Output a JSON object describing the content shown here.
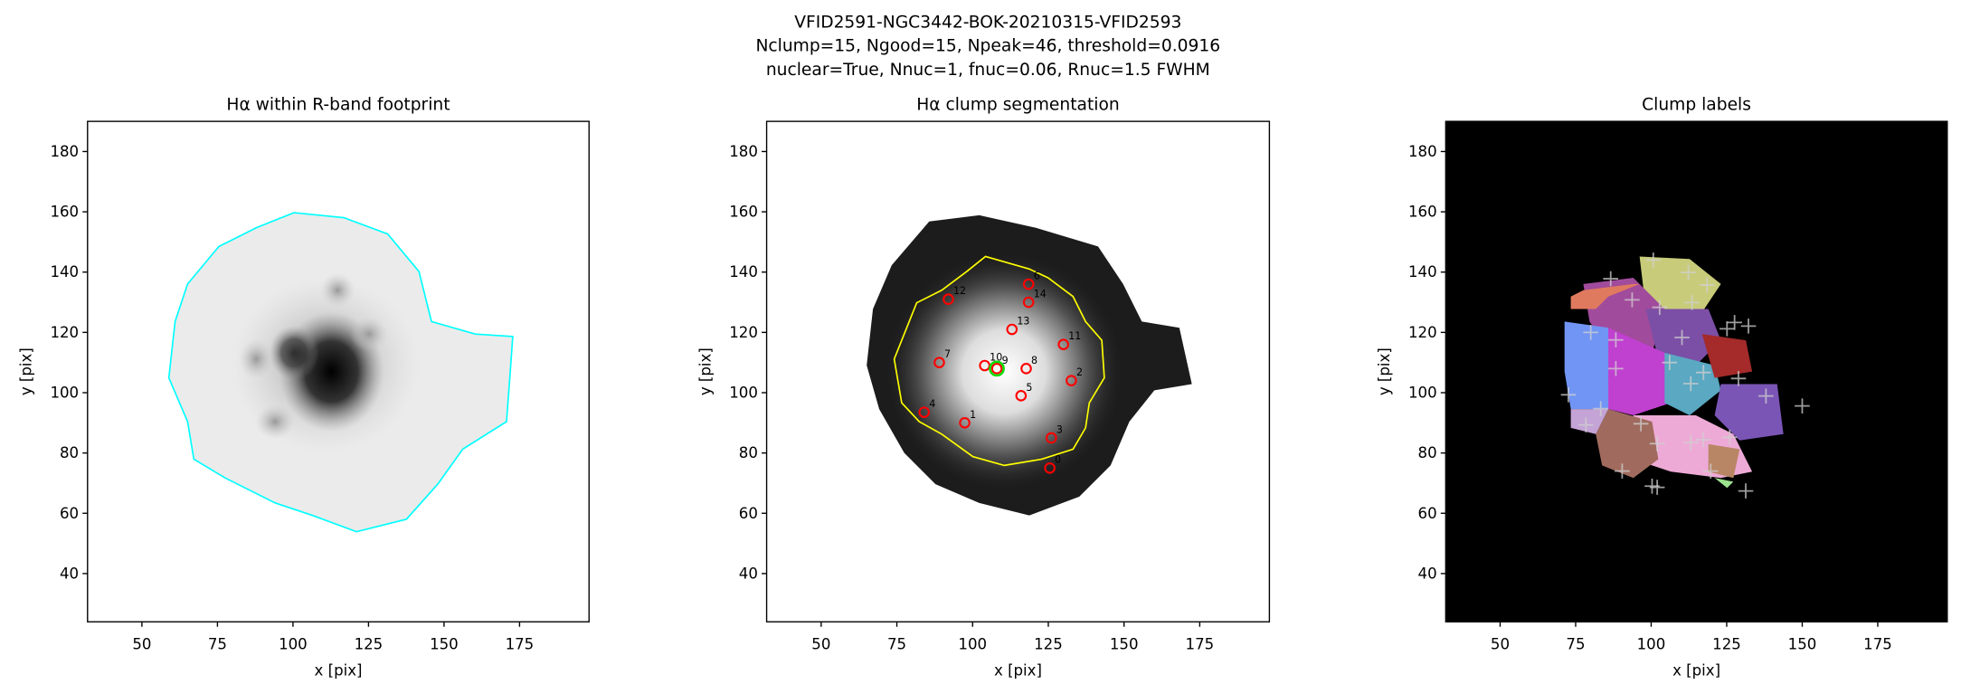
{
  "figure_title": [
    "VFID2591-NGC3442-BOK-20210315-VFID2593",
    "Nclump=15, Ngood=15, Npeak=46, threshold=0.0916",
    "nuclear=True, Nnuc=1, fnuc=0.06, Rnuc=1.5 FWHM"
  ],
  "chart_data": [
    {
      "type": "image",
      "title": "Hα within R-band footprint",
      "xlabel": "x [pix]",
      "ylabel": "y [pix]",
      "xlim": [
        32,
        198
      ],
      "ylim": [
        24,
        190
      ],
      "xticks": [
        50,
        75,
        100,
        125,
        150,
        175
      ],
      "yticks": [
        40,
        60,
        80,
        100,
        120,
        140,
        160,
        180
      ]
    },
    {
      "type": "image",
      "title": "Hα clump segmentation",
      "xlabel": "x [pix]",
      "ylabel": "y [pix]",
      "xlim": [
        32,
        198
      ],
      "ylim": [
        24,
        190
      ],
      "xticks": [
        50,
        75,
        100,
        125,
        150,
        175
      ],
      "yticks": [
        40,
        60,
        80,
        100,
        120,
        140,
        160,
        180
      ],
      "clumps": {
        "color": "#ff0000",
        "x": [
          92,
          118.5,
          118.5,
          113,
          130,
          89,
          104,
          108,
          117.7,
          132.6,
          116,
          84,
          97.4,
          126,
          125.5
        ],
        "y": [
          131,
          136,
          130,
          121,
          116,
          110,
          109,
          108,
          108,
          104,
          99,
          93.5,
          90,
          85,
          75
        ],
        "labels": [
          "12",
          "6",
          "14",
          "13",
          "11",
          "7",
          "10",
          "9",
          "8",
          "2",
          "5",
          "4",
          "1",
          "3",
          "0"
        ]
      },
      "nucleus": {
        "color": "#00dd00",
        "x": [
          108
        ],
        "y": [
          108
        ]
      }
    },
    {
      "type": "image",
      "title": "Clump labels",
      "xlabel": "x [pix]",
      "ylabel": "y [pix]",
      "xlim": [
        32,
        198
      ],
      "ylim": [
        24,
        190
      ],
      "xticks": [
        50,
        75,
        100,
        125,
        150,
        175
      ],
      "yticks": [
        40,
        60,
        80,
        100,
        120,
        140,
        160,
        180
      ],
      "peaks": {
        "color": "#d0d0d0",
        "x": [
          86.6,
          100.7,
          112.3,
          118.5,
          93.7,
          102.8,
          113.5,
          127.6,
          132.2,
          110.2,
          125.1,
          80,
          88.3,
          88.3,
          106.1,
          117.3,
          128.9,
          138,
          113.1,
          150,
          72.6,
          83.3,
          78.4,
          96.6,
          102,
          113.1,
          117.3,
          126,
          90.4,
          102,
          100.3,
          119.7,
          131.3
        ],
        "y": [
          137.8,
          144,
          139.9,
          135.7,
          130.8,
          128.3,
          129.9,
          123.3,
          122.1,
          118.3,
          121.2,
          120,
          117.5,
          108,
          110,
          106.7,
          104.7,
          98.9,
          103,
          95.6,
          99.3,
          94.7,
          89.3,
          89.7,
          83.1,
          83.5,
          84.4,
          85.2,
          74,
          68.6,
          69,
          74,
          67.4
        ]
      }
    }
  ]
}
